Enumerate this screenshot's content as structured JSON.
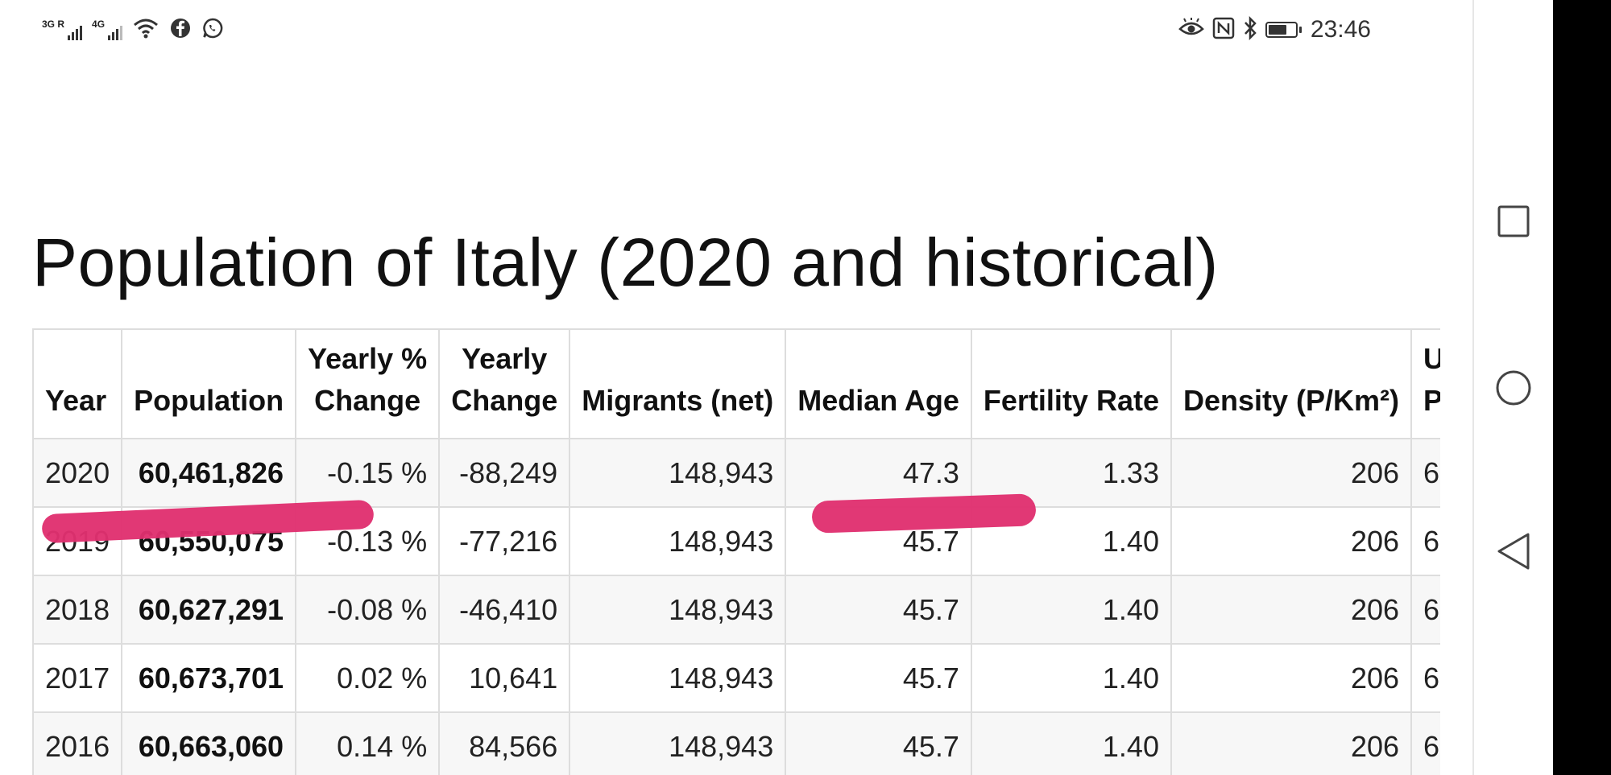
{
  "status_bar": {
    "signal1_label": "3G R",
    "signal2_label": "4G",
    "time": "23:46",
    "icons": [
      "signal-icon",
      "signal-icon",
      "wifi-icon",
      "facebook-icon",
      "whatsapp-icon",
      "eye-comfort-icon",
      "nfc-icon",
      "bluetooth-icon",
      "battery-icon"
    ]
  },
  "page": {
    "title": "Population of Italy (2020 and historical)"
  },
  "table": {
    "headers": {
      "year": "Year",
      "population": "Population",
      "yearly_pct_1": "Yearly %",
      "yearly_pct_2": "Change",
      "yearly_change_1": "Yearly",
      "yearly_change_2": "Change",
      "migrants": "Migrants (net)",
      "median_age": "Median Age",
      "fertility": "Fertility Rate",
      "density": "Density (P/Km²)",
      "next_1": "U",
      "next_2": "P"
    },
    "rows": [
      {
        "year": "2020",
        "population": "60,461,826",
        "yearly_pct": "-0.15 %",
        "yearly_change": "-88,249",
        "migrants": "148,943",
        "median_age": "47.3",
        "fertility": "1.33",
        "density": "206",
        "next": "6"
      },
      {
        "year": "2019",
        "population": "60,550,075",
        "yearly_pct": "-0.13 %",
        "yearly_change": "-77,216",
        "migrants": "148,943",
        "median_age": "45.7",
        "fertility": "1.40",
        "density": "206",
        "next": "6"
      },
      {
        "year": "2018",
        "population": "60,627,291",
        "yearly_pct": "-0.08 %",
        "yearly_change": "-46,410",
        "migrants": "148,943",
        "median_age": "45.7",
        "fertility": "1.40",
        "density": "206",
        "next": "6"
      },
      {
        "year": "2017",
        "population": "60,673,701",
        "yearly_pct": "0.02 %",
        "yearly_change": "10,641",
        "migrants": "148,943",
        "median_age": "45.7",
        "fertility": "1.40",
        "density": "206",
        "next": "6"
      },
      {
        "year": "2016",
        "population": "60,663,060",
        "yearly_pct": "0.14 %",
        "yearly_change": "84,566",
        "migrants": "148,943",
        "median_age": "45.7",
        "fertility": "1.40",
        "density": "206",
        "next": "6"
      }
    ]
  },
  "colors": {
    "marker": "#e0306f",
    "border": "#dddddd",
    "zebra": "#f7f7f7"
  }
}
